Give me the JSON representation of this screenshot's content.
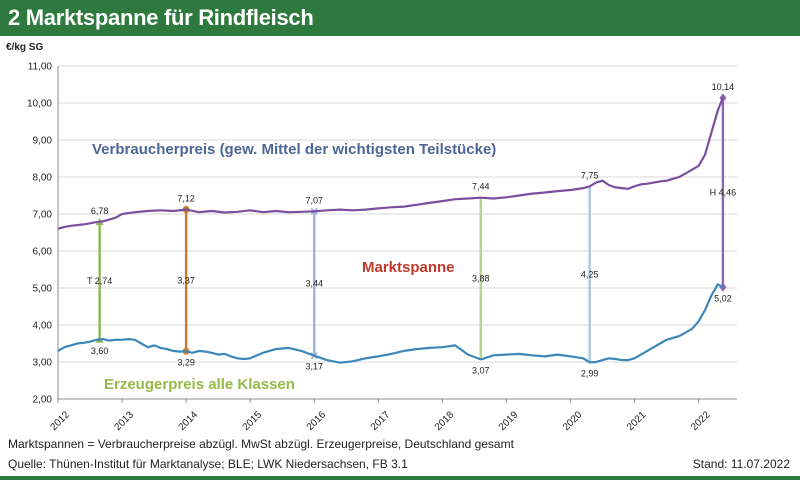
{
  "header": {
    "title": "2 Marktspanne für Rindfleisch"
  },
  "footer": {
    "note": "Marktspannen = Verbraucherpreise abzügl. MwSt abzügl. Erzeugerpreise, Deutschland gesamt",
    "source": "Quelle: Thünen-Institut für Marktanalyse; BLE; LWK Niedersachsen, FB 3.1",
    "stand": "Stand: 11.07.2022"
  },
  "chart_data": {
    "type": "line",
    "title": "",
    "ylabel": "€/kg SG",
    "xlim": [
      2012,
      2022.6
    ],
    "ylim": [
      2,
      11
    ],
    "y_ticks": [
      2,
      3,
      4,
      5,
      6,
      7,
      8,
      9,
      10,
      11
    ],
    "y_tick_labels": [
      "2,00",
      "3,00",
      "4,00",
      "5,00",
      "6,00",
      "7,00",
      "8,00",
      "9,00",
      "10,00",
      "11,00"
    ],
    "x_ticks": [
      2012,
      2013,
      2014,
      2015,
      2016,
      2017,
      2018,
      2019,
      2020,
      2021,
      2022
    ],
    "x_tick_labels": [
      "2012",
      "2013",
      "2014",
      "2015",
      "2016",
      "2017",
      "2018",
      "2019",
      "2020",
      "2021",
      "2022"
    ],
    "grid": "horizontal",
    "series": [
      {
        "name": "Verbraucherpreis (gew. Mittel der wichtigsten Teilstücke)",
        "label": "Verbraucherpreis (gew. Mittel der wichtigsten Teilstücke)",
        "color": "#7b4f9e",
        "x": [
          2012.0,
          2012.1,
          2012.2,
          2012.3,
          2012.4,
          2012.5,
          2012.6,
          2012.7,
          2012.8,
          2012.9,
          2013.0,
          2013.2,
          2013.4,
          2013.6,
          2013.8,
          2014.0,
          2014.2,
          2014.4,
          2014.6,
          2014.8,
          2015.0,
          2015.2,
          2015.4,
          2015.6,
          2015.8,
          2016.0,
          2016.2,
          2016.4,
          2016.6,
          2016.8,
          2017.0,
          2017.2,
          2017.4,
          2017.6,
          2017.8,
          2018.0,
          2018.2,
          2018.4,
          2018.6,
          2018.8,
          2019.0,
          2019.2,
          2019.4,
          2019.6,
          2019.8,
          2020.0,
          2020.2,
          2020.3,
          2020.4,
          2020.5,
          2020.6,
          2020.7,
          2020.8,
          2020.9,
          2021.0,
          2021.1,
          2021.2,
          2021.3,
          2021.4,
          2021.5,
          2021.6,
          2021.7,
          2021.8,
          2021.9,
          2022.0,
          2022.1,
          2022.2,
          2022.3,
          2022.38
        ],
        "y": [
          6.6,
          6.65,
          6.68,
          6.7,
          6.72,
          6.75,
          6.78,
          6.8,
          6.85,
          6.9,
          7.0,
          7.05,
          7.08,
          7.1,
          7.08,
          7.12,
          7.05,
          7.08,
          7.04,
          7.06,
          7.1,
          7.05,
          7.08,
          7.05,
          7.06,
          7.07,
          7.1,
          7.12,
          7.1,
          7.12,
          7.15,
          7.18,
          7.2,
          7.25,
          7.3,
          7.35,
          7.4,
          7.42,
          7.44,
          7.42,
          7.45,
          7.5,
          7.55,
          7.58,
          7.62,
          7.65,
          7.7,
          7.75,
          7.85,
          7.9,
          7.78,
          7.72,
          7.7,
          7.68,
          7.75,
          7.8,
          7.82,
          7.85,
          7.88,
          7.9,
          7.95,
          8.0,
          8.1,
          8.2,
          8.3,
          8.6,
          9.2,
          9.8,
          10.14
        ]
      },
      {
        "name": "Erzeugerpreis alle Klassen",
        "label": "Erzeugerpreis alle Klassen",
        "color": "#3d87b8",
        "x": [
          2012.0,
          2012.1,
          2012.2,
          2012.3,
          2012.4,
          2012.5,
          2012.6,
          2012.7,
          2012.8,
          2012.9,
          2013.0,
          2013.1,
          2013.2,
          2013.3,
          2013.4,
          2013.5,
          2013.6,
          2013.7,
          2013.8,
          2013.9,
          2014.0,
          2014.1,
          2014.2,
          2014.3,
          2014.4,
          2014.5,
          2014.6,
          2014.7,
          2014.8,
          2014.9,
          2015.0,
          2015.2,
          2015.4,
          2015.6,
          2015.8,
          2016.0,
          2016.2,
          2016.4,
          2016.6,
          2016.8,
          2017.0,
          2017.2,
          2017.4,
          2017.6,
          2017.8,
          2018.0,
          2018.2,
          2018.4,
          2018.6,
          2018.8,
          2019.0,
          2019.2,
          2019.4,
          2019.6,
          2019.8,
          2020.0,
          2020.2,
          2020.3,
          2020.4,
          2020.5,
          2020.6,
          2020.7,
          2020.8,
          2020.9,
          2021.0,
          2021.1,
          2021.2,
          2021.3,
          2021.4,
          2021.5,
          2021.6,
          2021.7,
          2021.8,
          2021.9,
          2022.0,
          2022.1,
          2022.2,
          2022.3,
          2022.38
        ],
        "y": [
          3.3,
          3.4,
          3.45,
          3.5,
          3.52,
          3.55,
          3.6,
          3.62,
          3.58,
          3.6,
          3.6,
          3.62,
          3.6,
          3.5,
          3.4,
          3.45,
          3.38,
          3.35,
          3.3,
          3.28,
          3.29,
          3.25,
          3.3,
          3.28,
          3.25,
          3.2,
          3.22,
          3.15,
          3.1,
          3.08,
          3.1,
          3.25,
          3.35,
          3.38,
          3.3,
          3.17,
          3.05,
          2.98,
          3.02,
          3.1,
          3.15,
          3.22,
          3.3,
          3.35,
          3.38,
          3.4,
          3.45,
          3.2,
          3.07,
          3.18,
          3.2,
          3.22,
          3.18,
          3.15,
          3.2,
          3.15,
          3.1,
          2.99,
          3.0,
          3.05,
          3.1,
          3.08,
          3.05,
          3.05,
          3.1,
          3.2,
          3.3,
          3.4,
          3.5,
          3.6,
          3.65,
          3.7,
          3.8,
          3.9,
          4.1,
          4.4,
          4.8,
          5.1,
          5.02
        ]
      }
    ],
    "spans": [
      {
        "x": 2012.65,
        "upper": 6.78,
        "lower": 3.6,
        "diff": 2.74,
        "diff_label": "T 2,74",
        "upper_label": "6,78",
        "lower_label": "3,60",
        "color": "#8ab653",
        "end": "triangle"
      },
      {
        "x": 2014.0,
        "upper": 7.12,
        "lower": 3.29,
        "diff": 3.37,
        "diff_label": "3,37",
        "upper_label": "7,12",
        "lower_label": "3,29",
        "color": "#c97a2b",
        "end": "circle"
      },
      {
        "x": 2016.0,
        "upper": 7.07,
        "lower": 3.17,
        "diff": 3.44,
        "diff_label": "3,44",
        "upper_label": "7,07",
        "lower_label": "3,17",
        "color": "#9db2d6",
        "end": "cross"
      },
      {
        "x": 2018.6,
        "upper": 7.44,
        "lower": 3.07,
        "diff": 3.88,
        "diff_label": "3,88",
        "upper_label": "7,44",
        "lower_label": "3,07",
        "color": "#b7d58a",
        "end": "line"
      },
      {
        "x": 2020.3,
        "upper": 7.75,
        "lower": 2.99,
        "diff": 4.25,
        "diff_label": "4,25",
        "upper_label": "7,75",
        "lower_label": "2,99",
        "color": "#a9c8e5",
        "end": "line"
      },
      {
        "x": 2022.38,
        "upper": 10.14,
        "lower": 5.02,
        "diff": 4.46,
        "diff_label": "H 4,46",
        "upper_label": "10,14",
        "lower_label": "5,02",
        "color": "#8e63b5",
        "end": "diamond"
      }
    ],
    "annotations": [
      {
        "text": "Verbraucherpreis (gew. Mittel der wichtigsten Teilstücke)",
        "color": "#4e6694"
      },
      {
        "text": "Marktspanne",
        "color": "#c0392b"
      },
      {
        "text": "Erzeugerpreis alle Klassen",
        "color": "#96b94a"
      }
    ]
  }
}
